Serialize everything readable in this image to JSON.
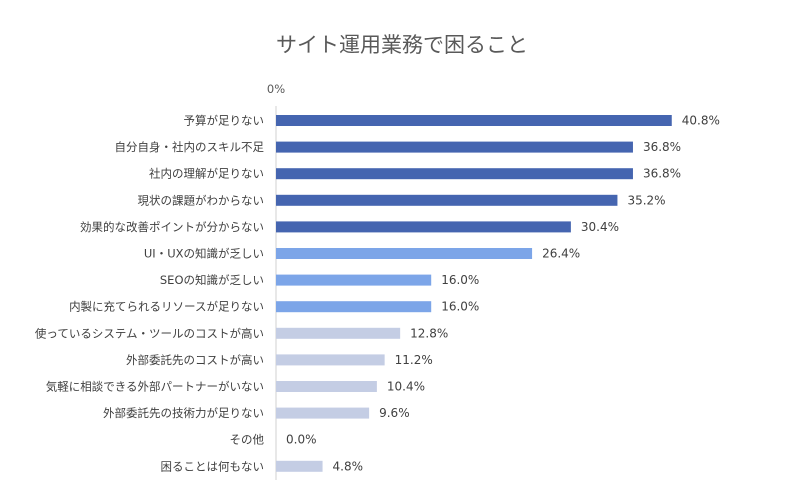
{
  "chart_data": {
    "type": "bar",
    "orientation": "horizontal",
    "title": "サイト運用業務で困ること",
    "axis_label_top": "0%",
    "xlim": [
      0,
      45
    ],
    "categories": [
      "予算が足りない",
      "自分自身・社内のスキル不足",
      "社内の理解が足りない",
      "現状の課題がわからない",
      "効果的な改善ポイントが分からない",
      "UI・UXの知識が乏しい",
      "SEOの知識が乏しい",
      "内製に充てられるリソースが足りない",
      "使っているシステム・ツールのコストが高い",
      "外部委託先のコストが高い",
      "気軽に相談できる外部パートナーがいない",
      "外部委託先の技術力が足りない",
      "その他",
      "困ることは何もない"
    ],
    "values": [
      40.8,
      36.8,
      36.8,
      35.2,
      30.4,
      26.4,
      16.0,
      16.0,
      12.8,
      11.2,
      10.4,
      9.6,
      0.0,
      4.8
    ],
    "value_labels": [
      "40.8%",
      "36.8%",
      "36.8%",
      "35.2%",
      "30.4%",
      "26.4%",
      "16.0%",
      "16.0%",
      "12.8%",
      "11.2%",
      "10.4%",
      "9.6%",
      "0.0%",
      "4.8%"
    ],
    "bar_colors": [
      "#4565b0",
      "#4565b0",
      "#4565b0",
      "#4565b0",
      "#4565b0",
      "#7ca5e8",
      "#7ca5e8",
      "#7ca5e8",
      "#c4cde4",
      "#c4cde4",
      "#c4cde4",
      "#c4cde4",
      "#c4cde4",
      "#c4cde4"
    ],
    "axis_color": "#d0d0d0"
  }
}
